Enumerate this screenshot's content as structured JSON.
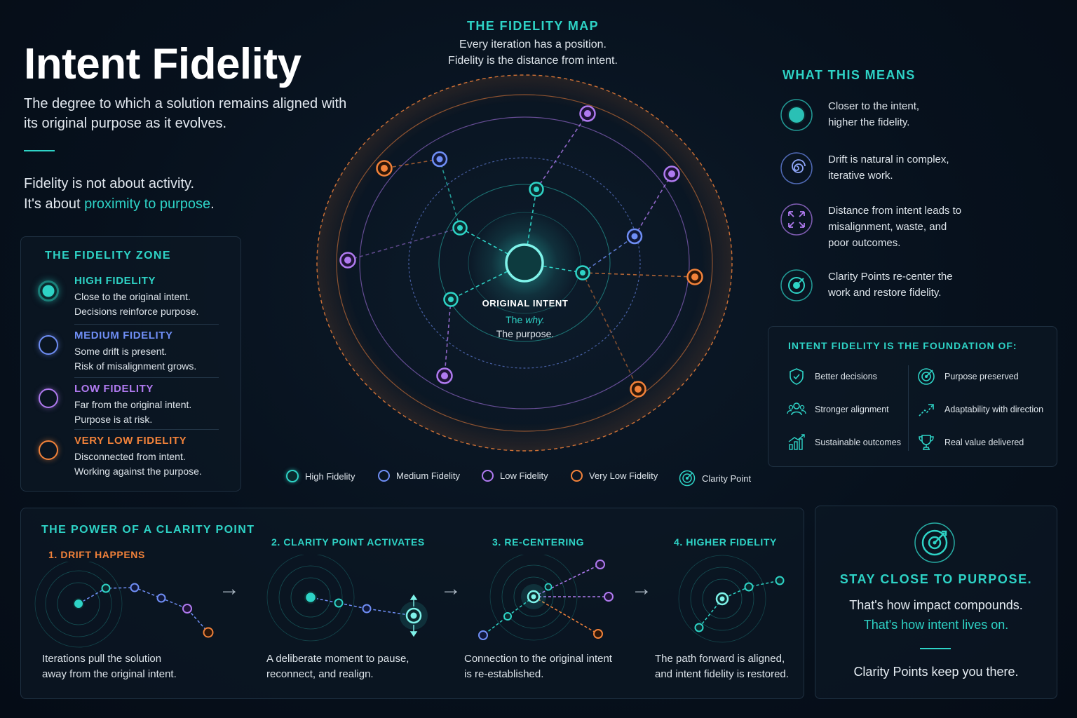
{
  "colors": {
    "teal": "#2ed3c6",
    "blue": "#6f8ef5",
    "purple": "#b07af0",
    "orange": "#f2823a",
    "background": "#07111d"
  },
  "header": {
    "title": "Intent Fidelity",
    "subtitle": "The degree to which a solution remains aligned with its original purpose as it evolves.",
    "tagline_line1": "Fidelity is not about activity.",
    "tagline_prefix": "It's about ",
    "tagline_highlight": "proximity to purpose",
    "tagline_suffix": "."
  },
  "zones": {
    "heading": "THE FIDELITY ZONE",
    "items": [
      {
        "title": "HIGH FIDELITY",
        "line1": "Close to the original intent.",
        "line2": "Decisions reinforce purpose.",
        "color": "#2ed3c6"
      },
      {
        "title": "MEDIUM FIDELITY",
        "line1": "Some drift is present.",
        "line2": "Risk of misalignment grows.",
        "color": "#6f8ef5"
      },
      {
        "title": "LOW FIDELITY",
        "line1": "Far from the original intent.",
        "line2": "Purpose is at risk.",
        "color": "#b07af0"
      },
      {
        "title": "VERY LOW FIDELITY",
        "line1": "Disconnected from intent.",
        "line2": "Working against the purpose.",
        "color": "#f2823a"
      }
    ]
  },
  "map": {
    "heading": "THE FIDELITY MAP",
    "sub_line1": "Every iteration has a position.",
    "sub_line2": "Fidelity is the distance from intent.",
    "center_label": "ORIGINAL INTENT",
    "center_why_prefix": "The ",
    "center_why_word": "why.",
    "center_purpose": "The purpose."
  },
  "legend": [
    {
      "label": "High Fidelity",
      "icon": "teal-dot-icon"
    },
    {
      "label": "Medium Fidelity",
      "icon": "blue-ring-icon"
    },
    {
      "label": "Low Fidelity",
      "icon": "purple-ring-icon"
    },
    {
      "label": "Very Low Fidelity",
      "icon": "orange-ring-icon"
    },
    {
      "label": "Clarity Point",
      "icon": "target-icon"
    }
  ],
  "meaning": {
    "heading": "WHAT THIS MEANS",
    "items": [
      {
        "line1": "Closer to the intent,",
        "line2": "higher the fidelity.",
        "line3": "",
        "icon": "teal-dot-icon"
      },
      {
        "line1": "Drift is natural in complex,",
        "line2": "iterative work.",
        "line3": "",
        "icon": "spiral-icon"
      },
      {
        "line1": "Distance from intent leads to",
        "line2": "misalignment, waste, and",
        "line3": "poor outcomes.",
        "icon": "expand-arrows-icon"
      },
      {
        "line1": "Clarity Points re-center the",
        "line2": "work and restore fidelity.",
        "line3": "",
        "icon": "target-icon"
      }
    ]
  },
  "foundation": {
    "heading": "INTENT FIDELITY IS THE FOUNDATION OF:",
    "items": [
      {
        "label": "Better decisions",
        "icon": "shield-icon"
      },
      {
        "label": "Purpose preserved",
        "icon": "target-icon"
      },
      {
        "label": "Stronger alignment",
        "icon": "people-icon"
      },
      {
        "label": "Adaptability with direction",
        "icon": "trend-arrow-icon"
      },
      {
        "label": "Sustainable outcomes",
        "icon": "growth-chart-icon"
      },
      {
        "label": "Real value delivered",
        "icon": "trophy-icon"
      }
    ]
  },
  "power": {
    "heading": "THE POWER OF A CLARITY POINT",
    "steps": [
      {
        "title": "1. DRIFT HAPPENS",
        "line1": "Iterations pull the solution",
        "line2": "away from the original intent."
      },
      {
        "title": "2. CLARITY POINT ACTIVATES",
        "line1": "A deliberate moment to pause,",
        "line2": "reconnect, and realign."
      },
      {
        "title": "3. RE-CENTERING",
        "line1": "Connection to the original intent",
        "line2": "is re-established."
      },
      {
        "title": "4. HIGHER FIDELITY",
        "line1": "The path forward is aligned,",
        "line2": "and intent fidelity is restored."
      }
    ],
    "arrow": "→"
  },
  "cta": {
    "heading": "STAY CLOSE TO PURPOSE.",
    "line1": "That's how impact compounds.",
    "line2": "That's how intent lives on.",
    "line3": "Clarity Points keep you there."
  }
}
